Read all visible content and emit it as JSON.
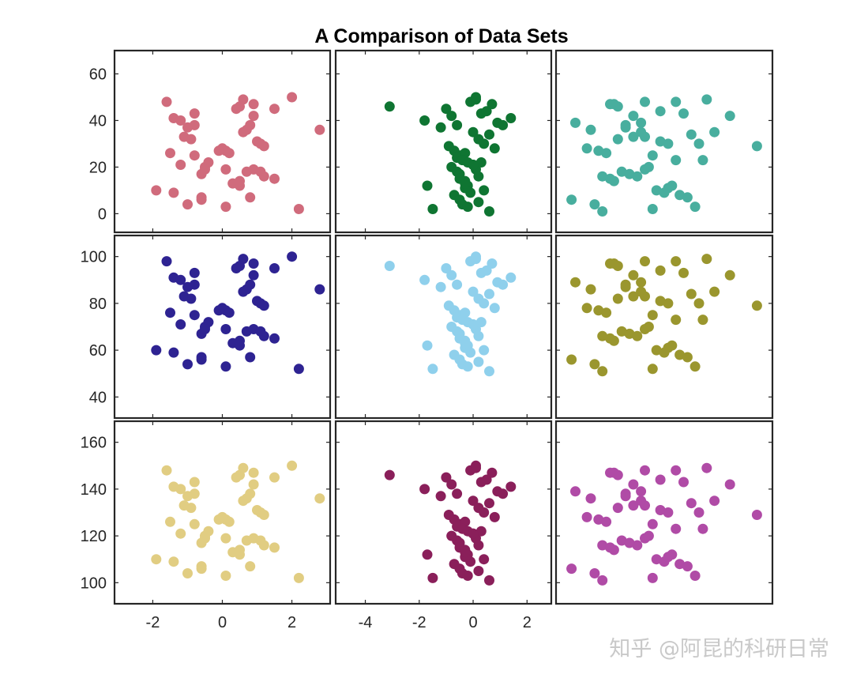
{
  "title": "A Comparison of Data Sets",
  "watermark": "知乎 @阿昆的科研日常",
  "chart_data": {
    "type": "scatter",
    "title": "A Comparison of Data Sets",
    "layout": "3x3 grid, shared y-axis per row, shared x-axis per column",
    "grid": false,
    "legend": "none",
    "rows": [
      {
        "ylim": [
          -8,
          70
        ],
        "yticks": [
          0,
          20,
          40,
          60
        ]
      },
      {
        "ylim": [
          31,
          109
        ],
        "yticks": [
          40,
          60,
          80,
          100
        ]
      },
      {
        "ylim": [
          91,
          169
        ],
        "yticks": [
          100,
          120,
          140,
          160
        ]
      }
    ],
    "columns": [
      {
        "xlim": [
          -3.1,
          3.1
        ],
        "xticks": [
          -2,
          0,
          2
        ],
        "xtick_labels": [
          "-2",
          "0",
          "2"
        ]
      },
      {
        "xlim": [
          -5.1,
          2.9
        ],
        "xticks": [
          -4,
          -2,
          0,
          2
        ],
        "xtick_labels": [
          "-4",
          "-2",
          "0",
          "2"
        ]
      },
      {
        "xlim": [
          -2.6,
          3.0
        ],
        "xticks": [],
        "xtick_labels": []
      }
    ],
    "point_sets": {
      "A": {
        "x": [
          -1.6,
          -1.4,
          -1.2,
          -1.0,
          -0.8,
          -0.8,
          -1.1,
          -0.9,
          -1.5,
          -1.2,
          -0.8,
          -0.6,
          -0.5,
          -0.4,
          -0.6,
          -1.4,
          -1.9,
          -1.0,
          -0.6,
          -0.5,
          0.1,
          0.3,
          0.5,
          0.5,
          0.7,
          0.9,
          1.1,
          1.2,
          1.5,
          2.2,
          2.8,
          0.0,
          -0.1,
          0.2,
          0.1,
          0.4,
          0.5,
          0.6,
          0.7,
          0.8,
          0.9,
          1.0,
          1.1,
          0.6,
          0.9,
          1.2,
          1.5,
          2.0,
          0.1,
          0.8
        ],
        "y": [
          48,
          41,
          40,
          37,
          43,
          38,
          33,
          32,
          26,
          21,
          25,
          17,
          20,
          22,
          6,
          9,
          10,
          4,
          7,
          19,
          27,
          13,
          12,
          14,
          18,
          19,
          18,
          16,
          15,
          2,
          36,
          28,
          27,
          26,
          19,
          45,
          46,
          35,
          36,
          38,
          47,
          31,
          30,
          49,
          42,
          29,
          45,
          50,
          3,
          7
        ]
      },
      "B": {
        "x": [
          -3.1,
          -1.8,
          -1.5,
          -1.7,
          -1.2,
          -1.0,
          -0.8,
          -0.6,
          -0.9,
          -0.7,
          -0.5,
          -0.3,
          -0.8,
          -0.6,
          -0.5,
          -0.3,
          -0.2,
          -0.1,
          0.0,
          0.1,
          0.2,
          0.3,
          -0.7,
          -0.5,
          -0.4,
          -0.2,
          0.0,
          0.2,
          0.4,
          0.6,
          0.8,
          -0.3,
          -0.1,
          0.1,
          0.3,
          0.5,
          0.7,
          0.9,
          1.1,
          1.4,
          -0.6,
          -0.4,
          -0.2,
          0.0,
          0.2,
          0.4,
          0.6,
          -0.5,
          -0.3,
          0.1
        ],
        "y": [
          46,
          40,
          2,
          12,
          37,
          45,
          42,
          38,
          29,
          27,
          25,
          26,
          20,
          18,
          17,
          14,
          12,
          9,
          21,
          19,
          16,
          22,
          8,
          6,
          4,
          3,
          35,
          32,
          30,
          34,
          28,
          11,
          48,
          49,
          43,
          44,
          47,
          39,
          38,
          41,
          24,
          23,
          22,
          21,
          5,
          10,
          1,
          15,
          13,
          50
        ]
      },
      "C": {
        "x": [
          -2.1,
          -1.7,
          -1.5,
          -1.3,
          -1.1,
          -1.0,
          -0.8,
          -0.6,
          -0.4,
          -0.3,
          -0.1,
          0.1,
          0.3,
          0.5,
          0.7,
          0.9,
          1.1,
          1.3,
          1.5,
          1.9,
          2.6,
          -2.2,
          -1.8,
          -1.6,
          -1.4,
          -1.2,
          -1.1,
          -0.9,
          -0.7,
          -0.5,
          -0.3,
          -0.2,
          0.0,
          0.2,
          0.4,
          0.6,
          0.8,
          1.0,
          -1.4,
          -1.2,
          -1.0,
          -0.8,
          -0.6,
          -0.4,
          -0.3,
          -0.1,
          0.1,
          0.3,
          0.5,
          1.2
        ],
        "y": [
          39,
          36,
          27,
          26,
          47,
          46,
          38,
          33,
          35,
          48,
          25,
          31,
          30,
          48,
          43,
          34,
          30,
          49,
          35,
          42,
          29,
          6,
          28,
          4,
          16,
          15,
          14,
          18,
          17,
          16,
          19,
          20,
          10,
          9,
          12,
          8,
          7,
          3,
          1,
          47,
          32,
          37,
          42,
          39,
          33,
          2,
          44,
          11,
          23,
          23
        ]
      }
    },
    "panels": [
      {
        "row": 0,
        "col": 0,
        "color": "#d06b7c",
        "points": "A",
        "y_offset": 0
      },
      {
        "row": 0,
        "col": 1,
        "color": "#0f7532",
        "points": "B",
        "y_offset": 0
      },
      {
        "row": 0,
        "col": 2,
        "color": "#48ae9e",
        "points": "C",
        "y_offset": 0
      },
      {
        "row": 1,
        "col": 0,
        "color": "#2e2392",
        "points": "A",
        "y_offset": 50
      },
      {
        "row": 1,
        "col": 1,
        "color": "#8fd0ec",
        "points": "B",
        "y_offset": 50
      },
      {
        "row": 1,
        "col": 2,
        "color": "#9a962e",
        "points": "C",
        "y_offset": 50
      },
      {
        "row": 2,
        "col": 0,
        "color": "#e1cd82",
        "points": "A",
        "y_offset": 100
      },
      {
        "row": 2,
        "col": 1,
        "color": "#8a1f5a",
        "points": "B",
        "y_offset": 100
      },
      {
        "row": 2,
        "col": 2,
        "color": "#b04ba6",
        "points": "C",
        "y_offset": 100
      }
    ]
  }
}
